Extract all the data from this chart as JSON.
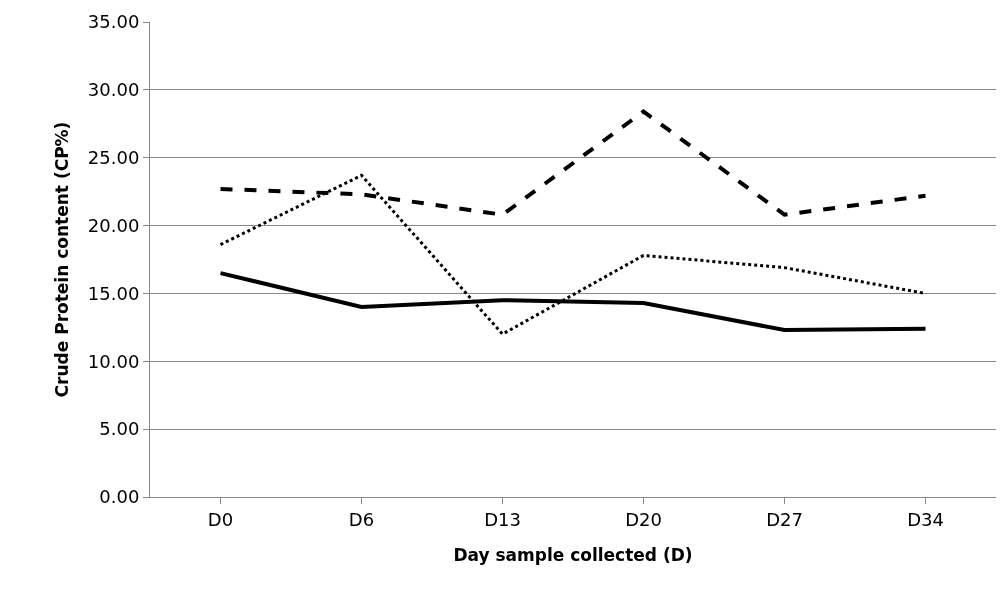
{
  "chart_data": {
    "type": "line",
    "xlabel": "Day sample collected (D)",
    "ylabel": "Crude Protein content (CP%)",
    "categories": [
      "D0",
      "D6",
      "D13",
      "D20",
      "D27",
      "D34"
    ],
    "series": [
      {
        "color": "#000000",
        "line_style": "solid",
        "values": [
          16.5,
          14.0,
          14.5,
          14.3,
          12.3,
          12.4
        ]
      },
      {
        "color": "#000000",
        "line_style": "dashed",
        "values": [
          22.7,
          22.3,
          20.8,
          28.4,
          20.8,
          22.2
        ]
      },
      {
        "color": "#000000",
        "line_style": "dotted",
        "values": [
          18.6,
          23.7,
          12.0,
          17.8,
          16.9,
          15.0
        ]
      }
    ],
    "ylim": [
      0,
      35
    ],
    "yticks": [
      {
        "value": 0,
        "label": "0.00"
      },
      {
        "value": 5,
        "label": "5.00"
      },
      {
        "value": 10,
        "label": "10.00"
      },
      {
        "value": 15,
        "label": "15.00"
      },
      {
        "value": 20,
        "label": "20.00"
      },
      {
        "value": 25,
        "label": "25.00"
      },
      {
        "value": 30,
        "label": "30.00"
      },
      {
        "value": 35,
        "label": "35.00"
      }
    ],
    "grid": "y",
    "marker": "none"
  }
}
